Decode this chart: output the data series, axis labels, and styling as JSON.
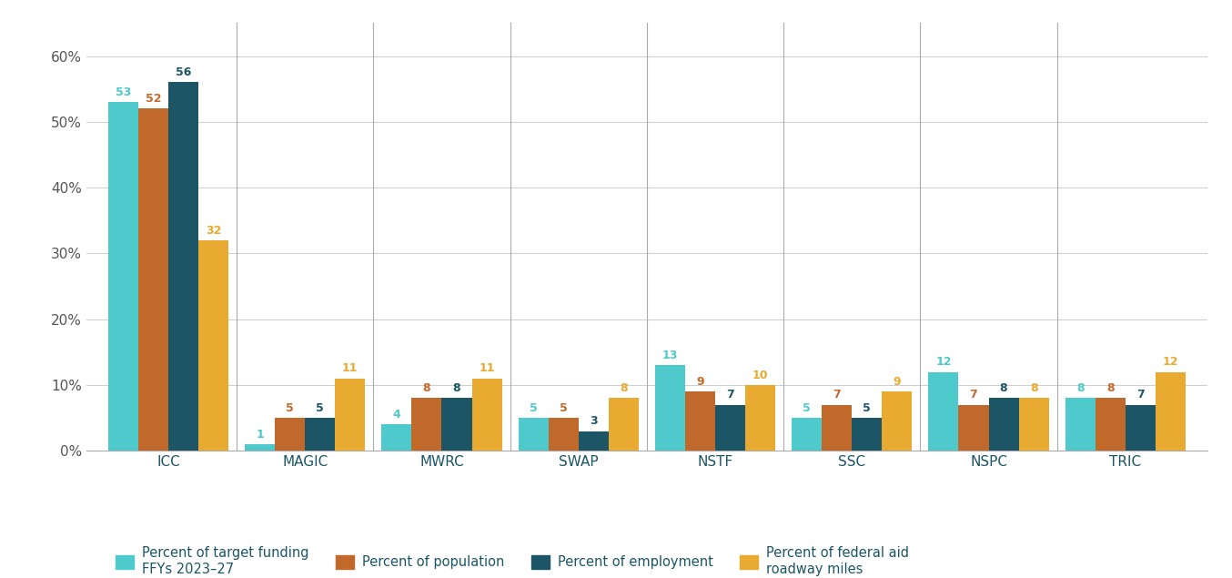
{
  "categories": [
    "ICC",
    "MAGIC",
    "MWRC",
    "SWAP",
    "NSTF",
    "SSC",
    "NSPC",
    "TRIC"
  ],
  "series": {
    "target_funding": [
      53,
      1,
      4,
      5,
      13,
      5,
      12,
      8
    ],
    "population": [
      52,
      5,
      8,
      5,
      9,
      7,
      7,
      8
    ],
    "employment": [
      56,
      5,
      8,
      3,
      7,
      5,
      8,
      7
    ],
    "federal_aid": [
      32,
      11,
      11,
      8,
      10,
      9,
      8,
      12
    ]
  },
  "colors": {
    "target_funding": "#4ec9cc",
    "population": "#c1692a",
    "employment": "#1b5566",
    "federal_aid": "#e8aa30"
  },
  "legend_labels": {
    "target_funding": "Percent of target funding\nFFYs 2023–27",
    "population": "Percent of population",
    "employment": "Percent of employment",
    "federal_aid": "Percent of federal aid\nroadway miles"
  },
  "ylim": [
    0,
    65
  ],
  "yticks": [
    0,
    10,
    20,
    30,
    40,
    50,
    60
  ],
  "ytick_labels": [
    "0%",
    "10%",
    "20%",
    "30%",
    "40%",
    "50%",
    "60%"
  ],
  "background_color": "#ffffff",
  "grid_color": "#d0d0d0",
  "bar_width": 0.22,
  "label_fontsize": 9,
  "tick_fontsize": 11,
  "legend_fontsize": 10.5,
  "label_color_target_funding": "#4ec9cc",
  "label_color_population": "#c1692a",
  "label_color_employment": "#1b5566",
  "label_color_federal_aid": "#e8aa30"
}
